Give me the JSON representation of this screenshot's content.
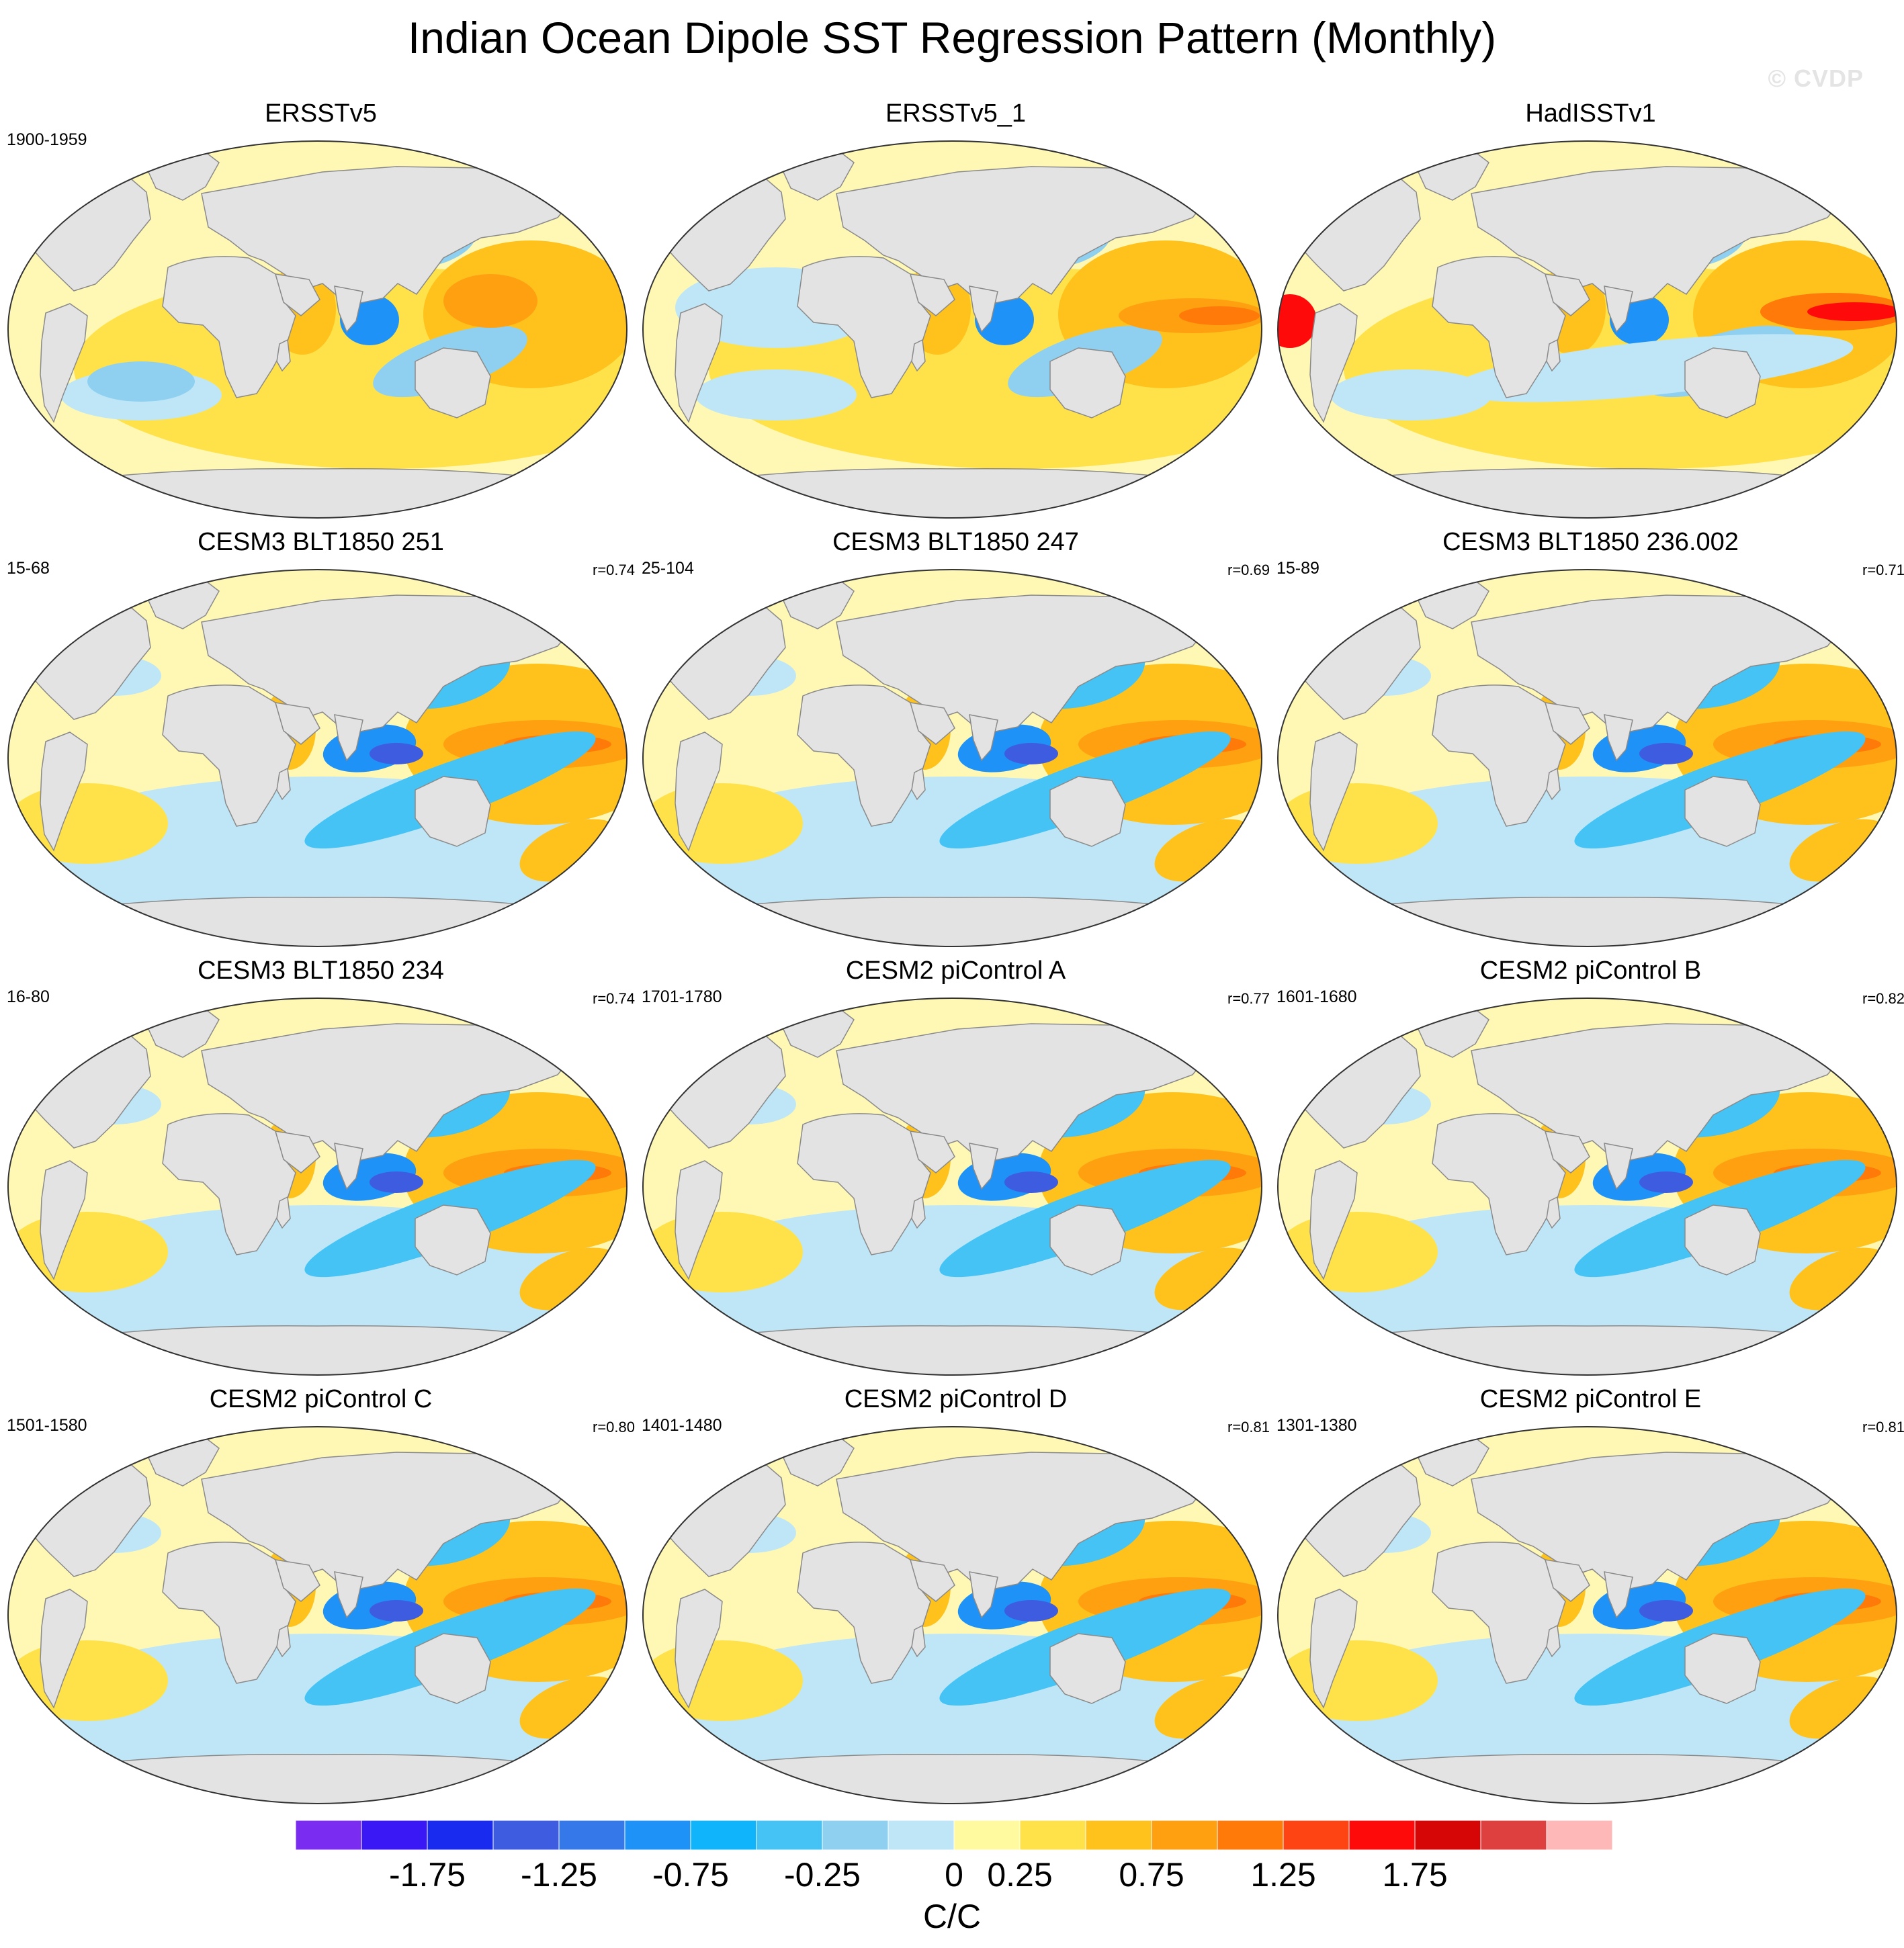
{
  "title": "Indian Ocean Dipole SST Regression Pattern (Monthly)",
  "watermark": "© CVDP",
  "panels": [
    {
      "title": "ERSSTv5",
      "period": "1900-1959",
      "corr": "",
      "kind": "obs-a"
    },
    {
      "title": "ERSSTv5_1",
      "period": "",
      "corr": "",
      "kind": "obs-b"
    },
    {
      "title": "HadISSTv1",
      "period": "",
      "corr": "",
      "kind": "obs-c"
    },
    {
      "title": "CESM3 BLT1850 251",
      "period": "15-68",
      "corr": "r=0.74",
      "kind": "model"
    },
    {
      "title": "CESM3 BLT1850 247",
      "period": "25-104",
      "corr": "r=0.69",
      "kind": "model"
    },
    {
      "title": "CESM3 BLT1850 236.002",
      "period": "15-89",
      "corr": "r=0.71",
      "kind": "model"
    },
    {
      "title": "CESM3 BLT1850 234",
      "period": "16-80",
      "corr": "r=0.74",
      "kind": "model"
    },
    {
      "title": "CESM2 piControl A",
      "period": "1701-1780",
      "corr": "r=0.77",
      "kind": "model"
    },
    {
      "title": "CESM2 piControl B",
      "period": "1601-1680",
      "corr": "r=0.82",
      "kind": "model"
    },
    {
      "title": "CESM2 piControl C",
      "period": "1501-1580",
      "corr": "r=0.80",
      "kind": "model"
    },
    {
      "title": "CESM2 piControl D",
      "period": "1401-1480",
      "corr": "r=0.81",
      "kind": "model"
    },
    {
      "title": "CESM2 piControl E",
      "period": "1301-1380",
      "corr": "r=0.81",
      "kind": "model"
    }
  ],
  "colorbar": {
    "colors": [
      "#7a2cf0",
      "#3a18f5",
      "#1a2bf0",
      "#3d5ce0",
      "#3578ea",
      "#1f92f7",
      "#10b4fa",
      "#45c3f5",
      "#8fd0f0",
      "#bfe6f7",
      "#fffaa0",
      "#ffe24a",
      "#ffc21c",
      "#ffa010",
      "#ff7a08",
      "#ff4414",
      "#ff0a0a",
      "#d60606",
      "#de4040",
      "#ffb8b8"
    ],
    "tick_labels": [
      "-1.75",
      "-1.25",
      "-0.75",
      "-0.25",
      "0",
      "0.25",
      "0.75",
      "1.25",
      "1.75"
    ],
    "units": "C/C"
  },
  "map_colors": {
    "ocean_base": "#fff8b5",
    "land": "#e3e3e3",
    "coast": "#8a8a8a",
    "light_blue": "#bfe6f7",
    "mid_blue": "#8fd0f0",
    "blue": "#45c3f5",
    "deep_blue": "#1f92f7",
    "darkest_blue": "#3d5ce0",
    "yellow": "#ffe24a",
    "gold": "#ffc21c",
    "orange": "#ffa010",
    "dark_orange": "#ff7a08",
    "red": "#ff0a0a"
  }
}
